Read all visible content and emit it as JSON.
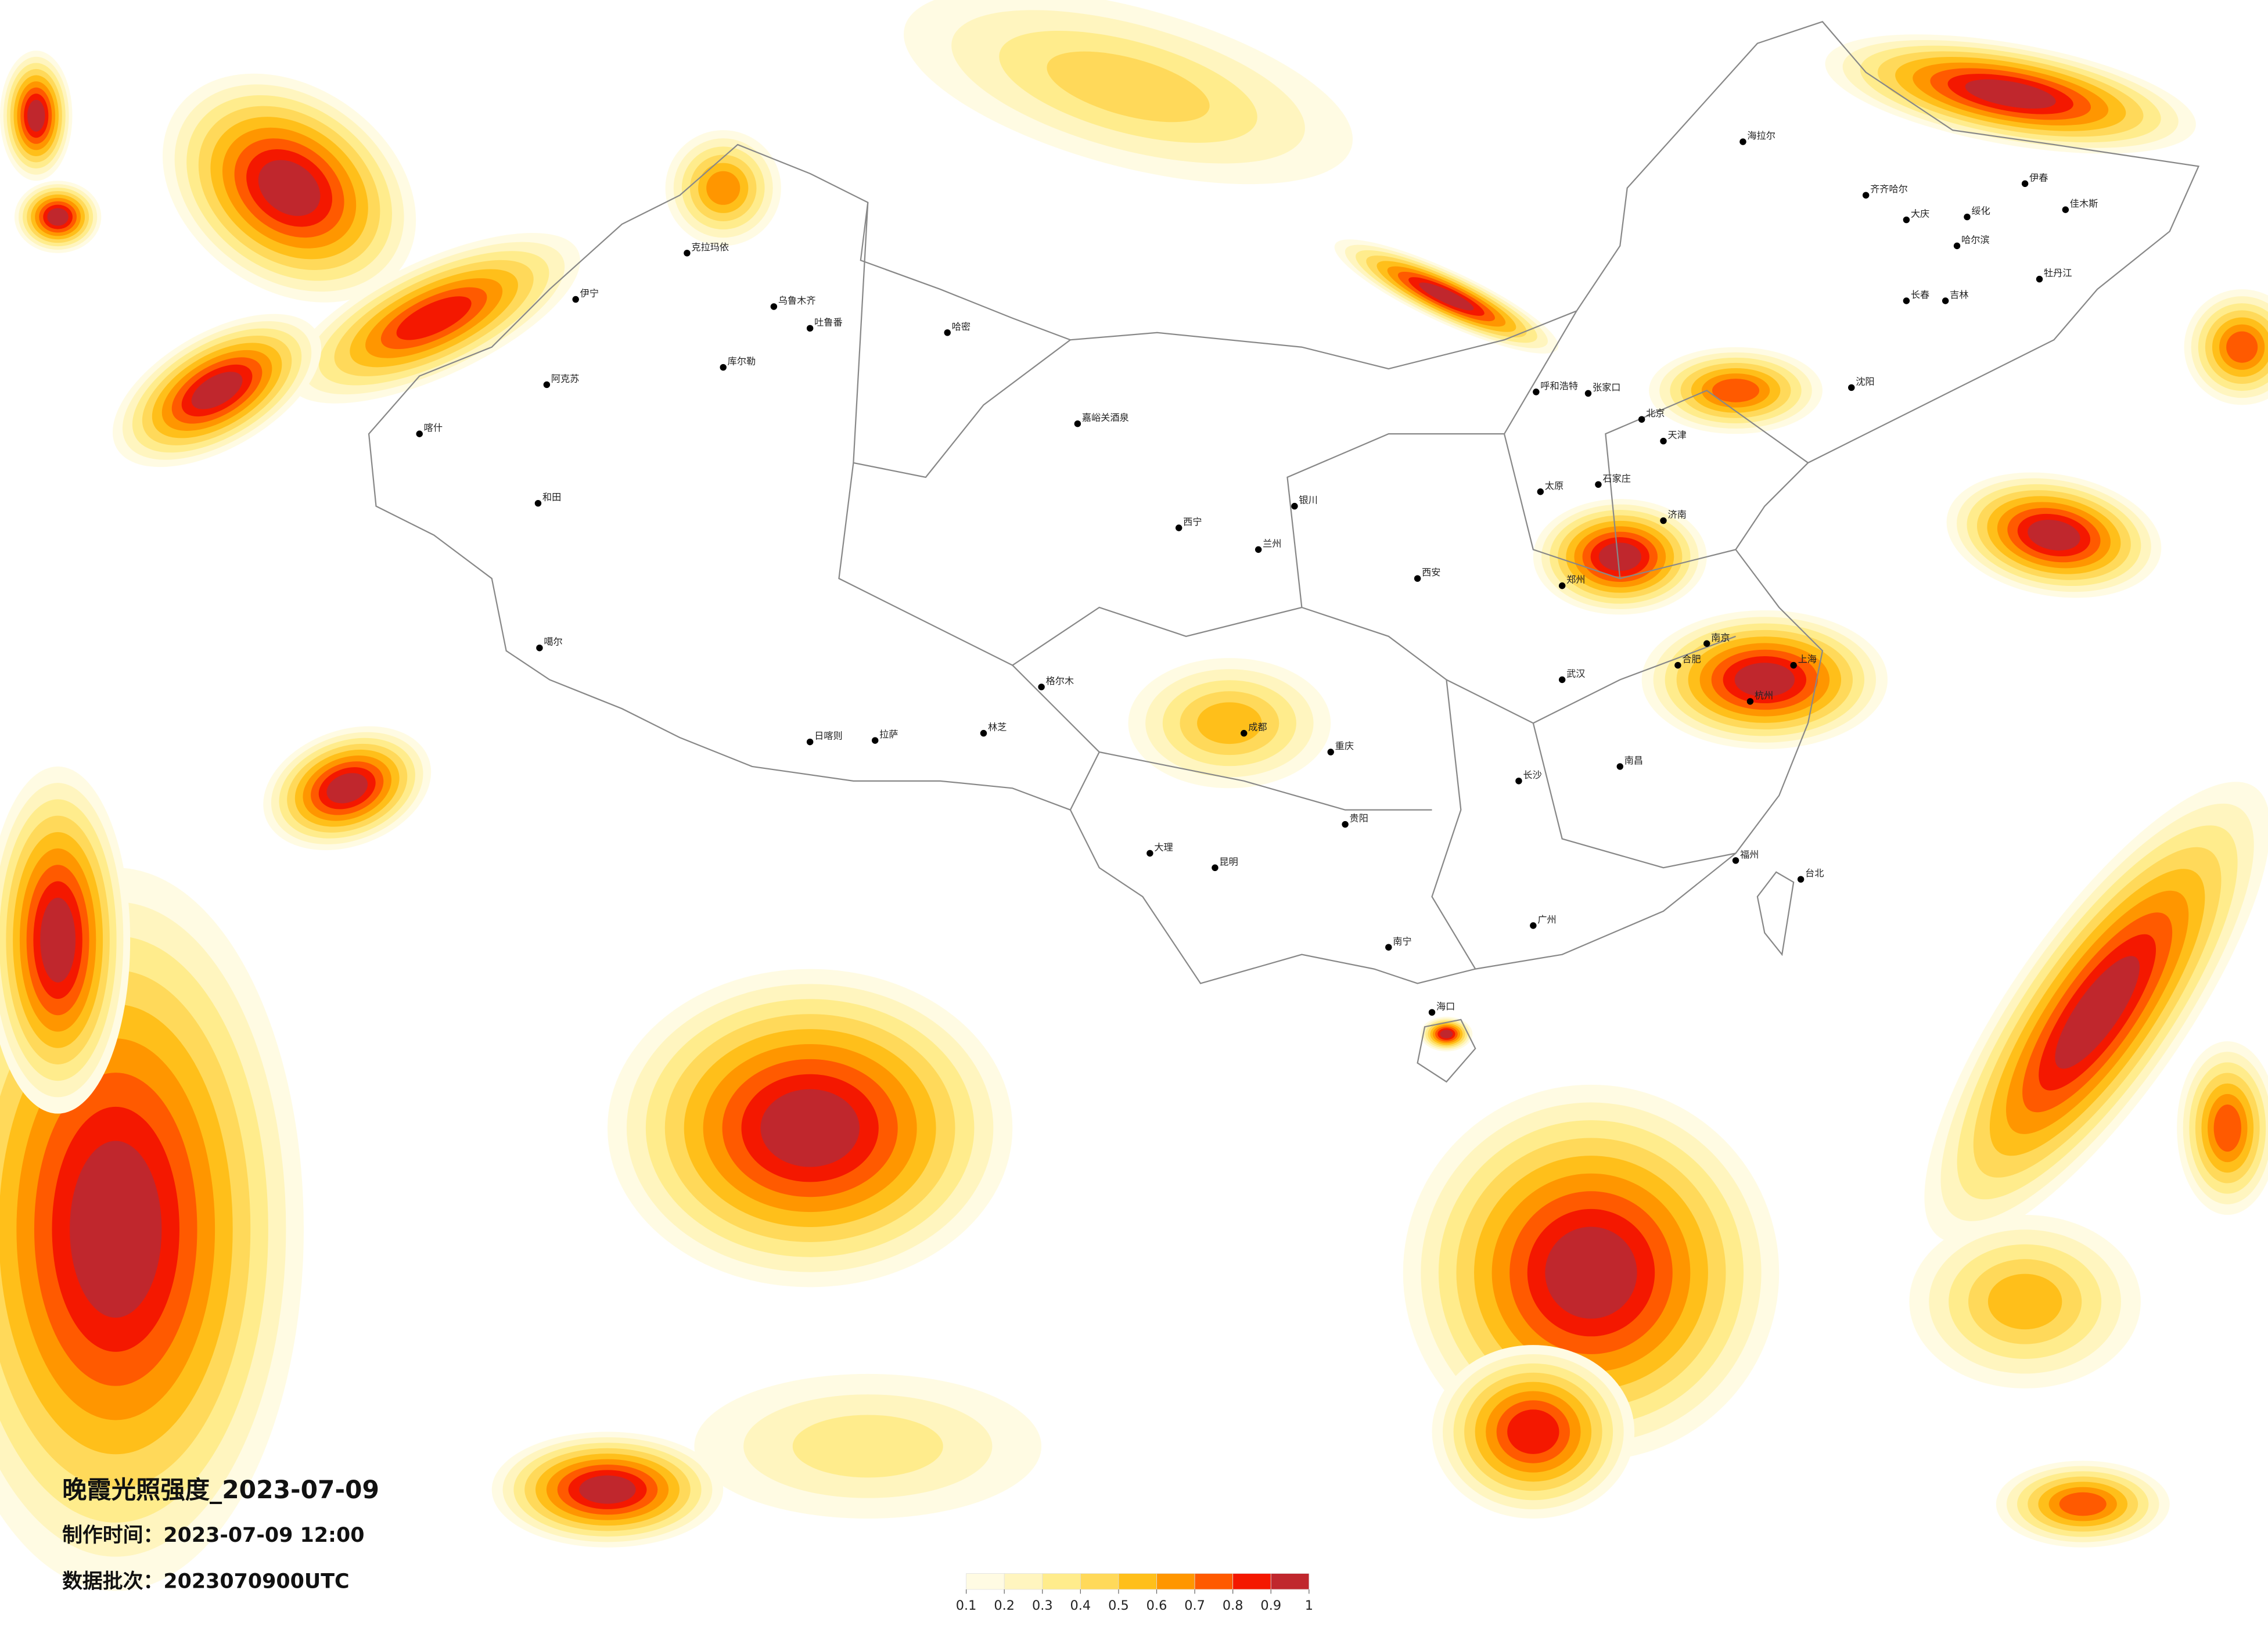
{
  "title": "晚霞光照强度_2023-07-09",
  "production_time": "制作时间：2023-07-09 12:00",
  "data_batch": "数据批次：2023070900UTC",
  "legend": {
    "ticks": [
      0.1,
      0.2,
      0.3,
      0.4,
      0.5,
      0.6,
      0.7,
      0.8,
      0.9,
      1
    ],
    "colors": [
      "#fffbe3",
      "#fff5bf",
      "#ffec8c",
      "#ffd95a",
      "#ffbf1a",
      "#ff9600",
      "#ff5a00",
      "#f41800",
      "#c0272d"
    ]
  },
  "cities": [
    "海拉尔",
    "齐齐哈尔",
    "大庆",
    "绥化",
    "哈尔滨",
    "伊春",
    "佳木斯",
    "牡丹江",
    "长春",
    "吉林",
    "沈阳",
    "呼和浩特",
    "张家口",
    "北京",
    "天津",
    "石家庄",
    "太原",
    "济南",
    "郑州",
    "西安",
    "兰州",
    "西宁",
    "银川",
    "乌鲁木齐",
    "克拉玛依",
    "伊宁",
    "阿克苏",
    "喀什",
    "和田",
    "库尔勒",
    "哈密",
    "吐鲁番",
    "嘉峪关酒泉",
    "格尔木",
    "拉萨",
    "日喀则",
    "林芝",
    "噶尔",
    "成都",
    "重庆",
    "武汉",
    "南京",
    "上海",
    "杭州",
    "合肥",
    "长沙",
    "南昌",
    "福州",
    "贵阳",
    "昆明",
    "南宁",
    "广州",
    "海口",
    "台北",
    "大理"
  ]
}
